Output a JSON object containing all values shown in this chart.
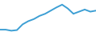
{
  "x": [
    0,
    1,
    2,
    3,
    4,
    5,
    6,
    7,
    8,
    9,
    10,
    11,
    12,
    13,
    14,
    15,
    16,
    17
  ],
  "y": [
    3.0,
    3.0,
    2.5,
    2.8,
    5.5,
    7.0,
    8.0,
    9.5,
    10.5,
    12.0,
    13.5,
    14.8,
    13.0,
    10.5,
    11.5,
    12.5,
    11.5,
    12.0
  ],
  "line_color": "#3d9fd4",
  "linewidth": 1.4,
  "background_color": "#ffffff",
  "ylim": [
    0,
    17
  ],
  "xlim": [
    0,
    17
  ]
}
